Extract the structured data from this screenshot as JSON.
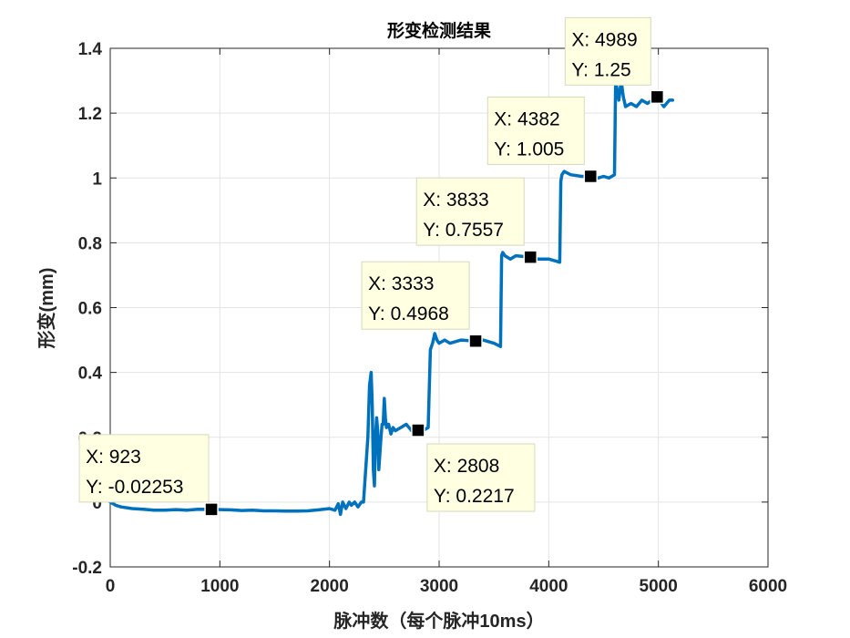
{
  "chart_data": {
    "type": "line",
    "title": "形变检测结果",
    "xlabel": "脉冲数（每个脉冲10ms）",
    "ylabel": "形变(mm)",
    "xlim": [
      0,
      6000
    ],
    "ylim": [
      -0.2,
      1.4
    ],
    "xticks": [
      0,
      1000,
      2000,
      3000,
      4000,
      5000,
      6000
    ],
    "xtick_labels": [
      "0",
      "1000",
      "2000",
      "3000",
      "4000",
      "5000",
      "6000"
    ],
    "yticks": [
      -0.2,
      0,
      0.2,
      0.4,
      0.6,
      0.8,
      1,
      1.2,
      1.4
    ],
    "ytick_labels": [
      "-0.2",
      "0",
      "0.2",
      "0.4",
      "0.6",
      "0.8",
      "1",
      "1.2",
      "1.4"
    ],
    "grid": true,
    "line_color": "#0072BD",
    "series": [
      {
        "name": "",
        "x": [
          0,
          50,
          100,
          200,
          300,
          400,
          500,
          600,
          700,
          800,
          923,
          1000,
          1100,
          1200,
          1300,
          1400,
          1500,
          1600,
          1700,
          1800,
          1900,
          2000,
          2050,
          2080,
          2100,
          2120,
          2150,
          2180,
          2200,
          2230,
          2260,
          2290,
          2310,
          2330,
          2350,
          2365,
          2380,
          2390,
          2400,
          2410,
          2420,
          2430,
          2440,
          2450,
          2460,
          2470,
          2480,
          2490,
          2500,
          2510,
          2520,
          2540,
          2560,
          2580,
          2600,
          2650,
          2700,
          2750,
          2808,
          2850,
          2900,
          2920,
          2940,
          2960,
          2980,
          3000,
          3050,
          3100,
          3200,
          3333,
          3400,
          3500,
          3560,
          3570,
          3580,
          3600,
          3650,
          3700,
          3833,
          3900,
          4000,
          4100,
          4110,
          4120,
          4140,
          4200,
          4300,
          4382,
          4450,
          4500,
          4550,
          4600,
          4610,
          4620,
          4640,
          4660,
          4680,
          4700,
          4750,
          4800,
          4850,
          4900,
          4989,
          5050,
          5100,
          5130
        ],
        "y": [
          0.0,
          -0.01,
          -0.015,
          -0.02,
          -0.022,
          -0.025,
          -0.025,
          -0.023,
          -0.025,
          -0.022,
          -0.0225,
          -0.023,
          -0.024,
          -0.026,
          -0.025,
          -0.027,
          -0.027,
          -0.028,
          -0.028,
          -0.027,
          -0.024,
          -0.02,
          -0.025,
          -0.005,
          -0.038,
          0.0,
          -0.02,
          0.0,
          -0.01,
          0.0,
          -0.015,
          0.0,
          0.0,
          0.1,
          0.2,
          0.36,
          0.4,
          0.3,
          0.1,
          0.05,
          0.2,
          0.26,
          0.22,
          0.1,
          0.15,
          0.2,
          0.24,
          0.24,
          0.32,
          0.26,
          0.23,
          0.24,
          0.21,
          0.23,
          0.22,
          0.23,
          0.24,
          0.22,
          0.2217,
          0.22,
          0.23,
          0.47,
          0.49,
          0.52,
          0.5,
          0.49,
          0.5,
          0.49,
          0.5,
          0.4968,
          0.5,
          0.49,
          0.48,
          0.76,
          0.77,
          0.76,
          0.75,
          0.76,
          0.7557,
          0.75,
          0.75,
          0.74,
          0.99,
          1.01,
          1.02,
          1.01,
          1.005,
          1.005,
          1.0,
          1.005,
          1.0,
          1.01,
          1.29,
          1.28,
          1.24,
          1.3,
          1.25,
          1.22,
          1.23,
          1.22,
          1.24,
          1.23,
          1.25,
          1.22,
          1.24,
          1.24
        ]
      }
    ],
    "datatips": [
      {
        "x": 923,
        "y": -0.02253,
        "label_x": "X: 923",
        "label_y": "Y: -0.02253",
        "placement": "above"
      },
      {
        "x": 2808,
        "y": 0.2217,
        "label_x": "X: 2808",
        "label_y": "Y: 0.2217",
        "placement": "below-right"
      },
      {
        "x": 3333,
        "y": 0.4968,
        "label_x": "X: 3333",
        "label_y": "Y: 0.4968",
        "placement": "above-left"
      },
      {
        "x": 3833,
        "y": 0.7557,
        "label_x": "X: 3833",
        "label_y": "Y: 0.7557",
        "placement": "above-left"
      },
      {
        "x": 4382,
        "y": 1.005,
        "label_x": "X: 4382",
        "label_y": "Y: 1.005",
        "placement": "above-left"
      },
      {
        "x": 4989,
        "y": 1.25,
        "label_x": "X: 4989",
        "label_y": "Y: 1.25",
        "placement": "above-left"
      }
    ]
  }
}
